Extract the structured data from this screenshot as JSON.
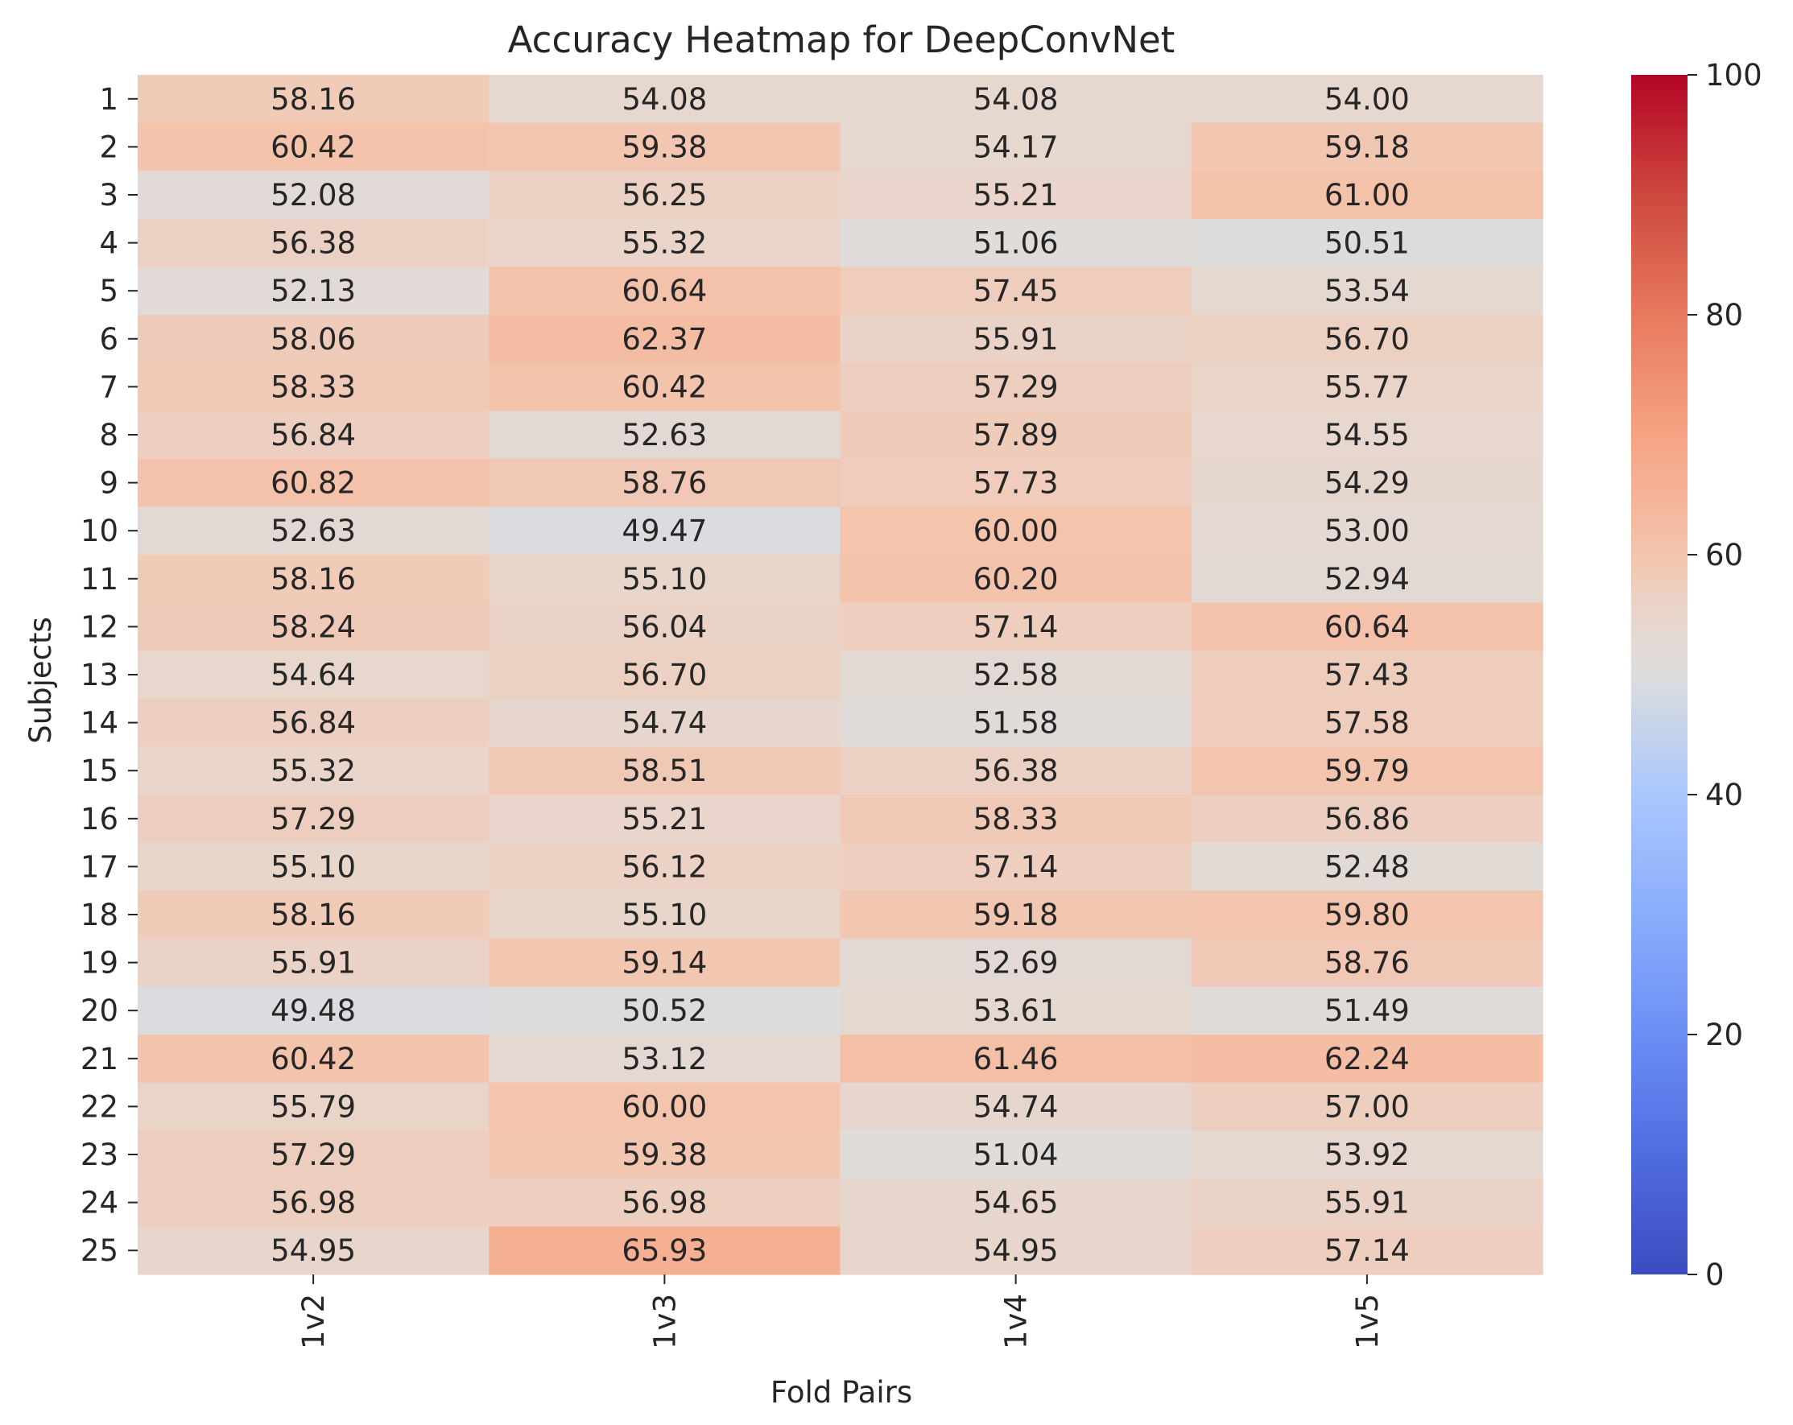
{
  "chart_data": {
    "type": "heatmap",
    "title": "Accuracy Heatmap for DeepConvNet",
    "xlabel": "Fold Pairs",
    "ylabel": "Subjects",
    "x_categories": [
      "1v2",
      "1v3",
      "1v4",
      "1v5"
    ],
    "y_categories": [
      "1",
      "2",
      "3",
      "4",
      "5",
      "6",
      "7",
      "8",
      "9",
      "10",
      "11",
      "12",
      "13",
      "14",
      "15",
      "16",
      "17",
      "18",
      "19",
      "20",
      "21",
      "22",
      "23",
      "24",
      "25"
    ],
    "values": [
      [
        58.16,
        54.08,
        54.08,
        54.0
      ],
      [
        60.42,
        59.38,
        54.17,
        59.18
      ],
      [
        52.08,
        56.25,
        55.21,
        61.0
      ],
      [
        56.38,
        55.32,
        51.06,
        50.51
      ],
      [
        52.13,
        60.64,
        57.45,
        53.54
      ],
      [
        58.06,
        62.37,
        55.91,
        56.7
      ],
      [
        58.33,
        60.42,
        57.29,
        55.77
      ],
      [
        56.84,
        52.63,
        57.89,
        54.55
      ],
      [
        60.82,
        58.76,
        57.73,
        54.29
      ],
      [
        52.63,
        49.47,
        60.0,
        53.0
      ],
      [
        58.16,
        55.1,
        60.2,
        52.94
      ],
      [
        58.24,
        56.04,
        57.14,
        60.64
      ],
      [
        54.64,
        56.7,
        52.58,
        57.43
      ],
      [
        56.84,
        54.74,
        51.58,
        57.58
      ],
      [
        55.32,
        58.51,
        56.38,
        59.79
      ],
      [
        57.29,
        55.21,
        58.33,
        56.86
      ],
      [
        55.1,
        56.12,
        57.14,
        52.48
      ],
      [
        58.16,
        55.1,
        59.18,
        59.8
      ],
      [
        55.91,
        59.14,
        52.69,
        58.76
      ],
      [
        49.48,
        50.52,
        53.61,
        51.49
      ],
      [
        60.42,
        53.12,
        61.46,
        62.24
      ],
      [
        55.79,
        60.0,
        54.74,
        57.0
      ],
      [
        57.29,
        59.38,
        51.04,
        53.92
      ],
      [
        56.98,
        56.98,
        54.65,
        55.91
      ],
      [
        54.95,
        65.93,
        54.95,
        57.14
      ]
    ],
    "value_format": "2 decimals",
    "colormap": "coolwarm",
    "colorbar": {
      "range": [
        0,
        100
      ],
      "ticks": [
        "0",
        "20",
        "40",
        "60",
        "80",
        "100"
      ]
    },
    "colors": {
      "low": "#3b4cc0",
      "mid": "#dddddd",
      "high": "#b40426",
      "text": "#262626"
    },
    "grid": false,
    "colorbar_position": "right"
  }
}
